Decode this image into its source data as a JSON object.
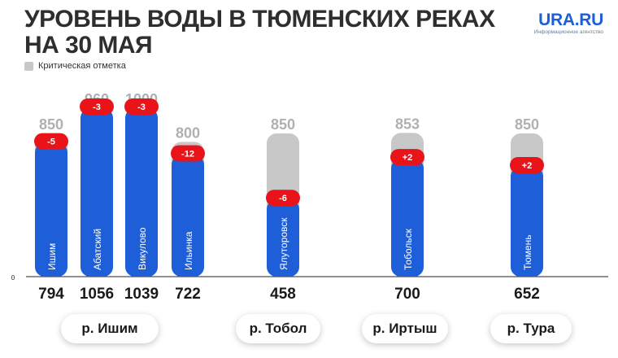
{
  "title": {
    "line1": "УРОВЕНЬ ВОДЫ В ТЮМЕНСКИХ РЕКАХ",
    "line2": "НА 30 МАЯ"
  },
  "logo": {
    "main": "URA.RU",
    "sub": "Информационное агентство"
  },
  "legend": {
    "label": "Критическая отметка",
    "color": "#c8c8c8"
  },
  "colors": {
    "actual": "#1e5ed8",
    "critical": "#c8c8c8",
    "change_badge": "#e8141a",
    "critical_text": "#b0b0b0",
    "value_text": "#1a1a1a"
  },
  "rivers": [
    {
      "label": "р. Ишим"
    },
    {
      "label": "р. Тобол"
    },
    {
      "label": "р. Иртыш"
    },
    {
      "label": "р. Тура"
    }
  ],
  "chart_data": {
    "type": "bar",
    "zero_label": "0",
    "categories": [
      "Ишим",
      "Абатский",
      "Викулово",
      "Ильинка",
      "Ялуторовск",
      "Тобольск",
      "Тюмень"
    ],
    "series": [
      {
        "name": "Критическая отметка",
        "values": [
          850,
          960,
          1000,
          800,
          850,
          853,
          850
        ]
      },
      {
        "values": [
          794,
          1056,
          1039,
          722,
          458,
          700,
          652
        ]
      }
    ],
    "changes": [
      "-5",
      "-3",
      "-3",
      "-12",
      "-6",
      "+2",
      "+2"
    ],
    "river": [
      "р. Ишим",
      "р. Ишим",
      "р. Ишим",
      "р. Ишим",
      "р. Тобол",
      "р. Иртыш",
      "р. Тура"
    ]
  }
}
